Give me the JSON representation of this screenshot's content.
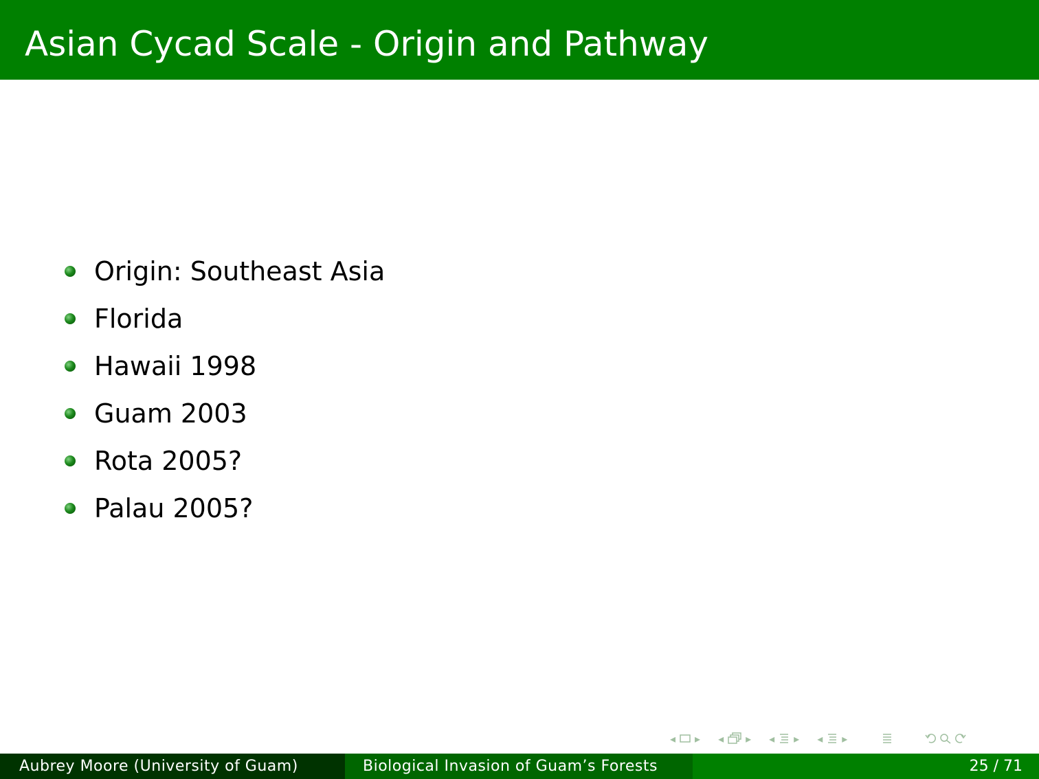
{
  "slide": {
    "title": "Asian Cycad Scale - Origin and Pathway",
    "bullets": [
      "Origin: Southeast Asia",
      "Florida",
      "Hawaii 1998",
      "Guam 2003",
      "Rota 2005?",
      "Palau 2005?"
    ]
  },
  "footer": {
    "author": "Aubrey Moore  (University of Guam)",
    "presentation_title": "Biological Invasion of Guam’s Forests",
    "page": "25 / 71"
  },
  "colors": {
    "title_bar": "#008000",
    "footer_author_bg": "#003300",
    "footer_title_bg": "#006600",
    "footer_page_bg": "#008000"
  },
  "icons": {
    "nav": [
      "nav-left-icon",
      "frame-icon",
      "nav-right-icon",
      "nav-left-icon",
      "subsection-icon",
      "nav-right-icon",
      "nav-left-icon",
      "section-icon",
      "nav-right-icon",
      "nav-left-icon",
      "section-icon",
      "nav-right-icon",
      "toc-icon",
      "undo-icon",
      "search-icon",
      "redo-icon"
    ]
  }
}
